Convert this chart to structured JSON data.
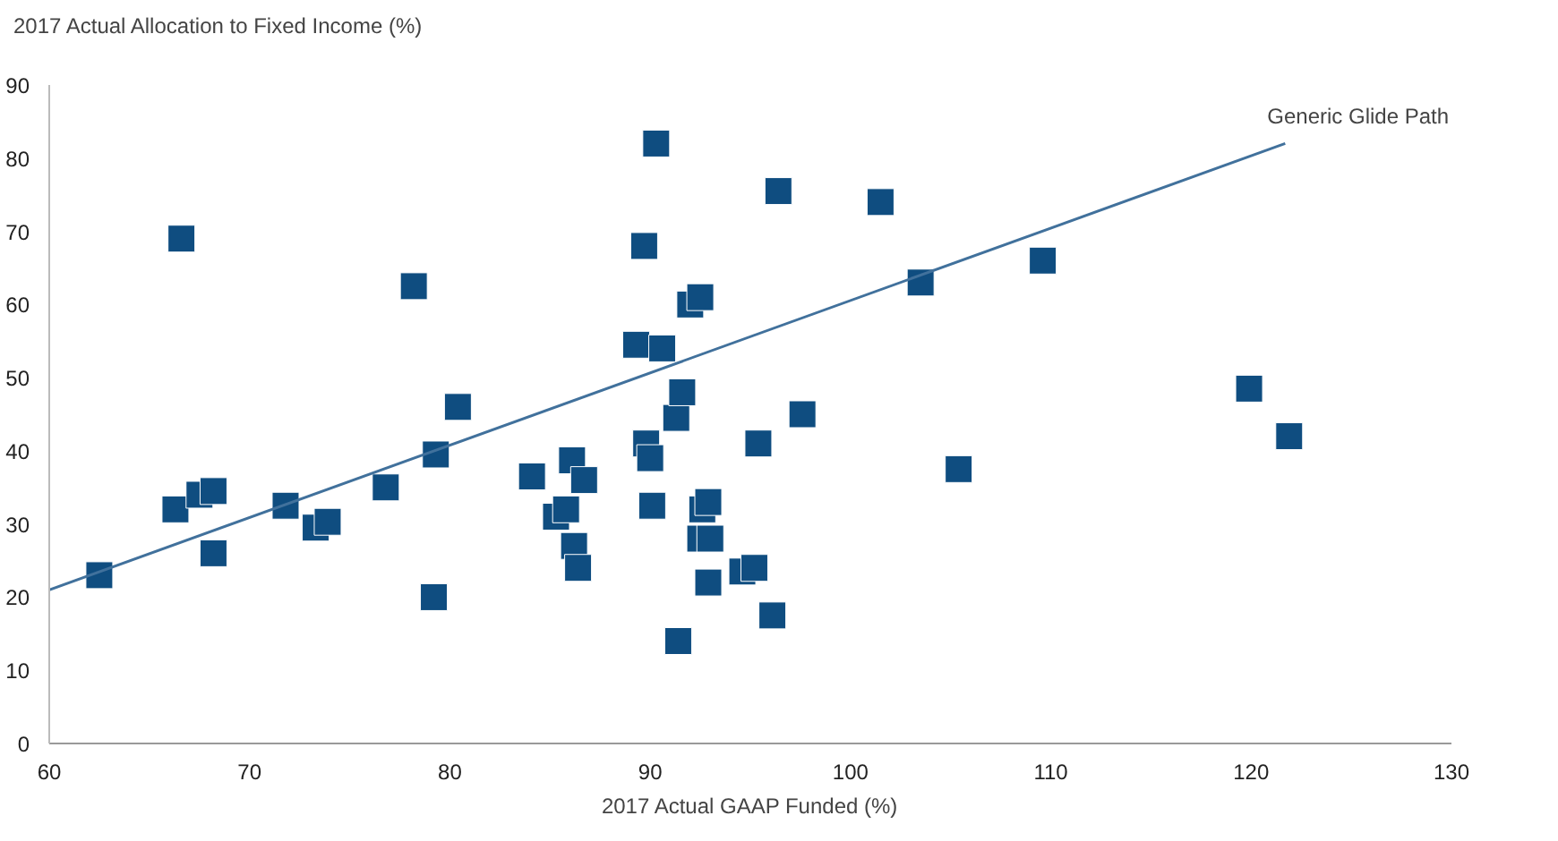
{
  "chart_data": {
    "type": "scatter",
    "xlabel": "2017 Actual GAAP Funded (%)",
    "ylabel": "2017 Actual Allocation to Fixed Income (%)",
    "xlim": [
      60,
      130
    ],
    "ylim": [
      0,
      90
    ],
    "xticks": [
      60,
      70,
      80,
      90,
      100,
      110,
      120,
      130
    ],
    "yticks": [
      0,
      10,
      20,
      30,
      40,
      50,
      60,
      70,
      80,
      90
    ],
    "grid": false,
    "annotations": [
      {
        "text": "Generic Glide Path",
        "x": 121.7,
        "y": 82
      }
    ],
    "series": [
      {
        "marker": "square",
        "color": "#0f4d80",
        "x": [
          62.5,
          66.3,
          66.6,
          67.5,
          68.2,
          68.2,
          71.8,
          73.3,
          73.9,
          76.8,
          78.2,
          79.2,
          79.3,
          80.4,
          84.1,
          85.3,
          85.8,
          86.1,
          86.2,
          86.4,
          86.7,
          89.3,
          89.7,
          89.8,
          90.0,
          90.1,
          90.3,
          90.6,
          91.3,
          91.6,
          91.4,
          92.0,
          92.5,
          92.5,
          92.6,
          92.9,
          93.0,
          92.9,
          94.6,
          95.2,
          95.4,
          96.1,
          96.4,
          97.6,
          101.5,
          103.5,
          105.4,
          109.6,
          119.9,
          121.9
        ],
        "values": [
          23,
          32,
          69,
          34,
          34.5,
          26,
          32.5,
          29.5,
          30.3,
          35,
          62.5,
          20,
          39.5,
          46,
          36.5,
          31,
          32,
          38.7,
          27,
          24,
          36,
          54.5,
          68,
          41,
          39,
          32.5,
          82,
          54,
          44.5,
          48,
          14,
          60,
          61,
          28,
          32,
          33,
          28,
          22,
          23.5,
          24,
          41,
          17.5,
          75.5,
          45,
          74,
          63,
          37.5,
          66,
          48.5,
          42
        ]
      },
      {
        "type": "line",
        "marker": "none",
        "color": "#41719c",
        "line_style": "solid",
        "x": [
          60,
          121.7
        ],
        "values": [
          21,
          82
        ]
      }
    ]
  }
}
